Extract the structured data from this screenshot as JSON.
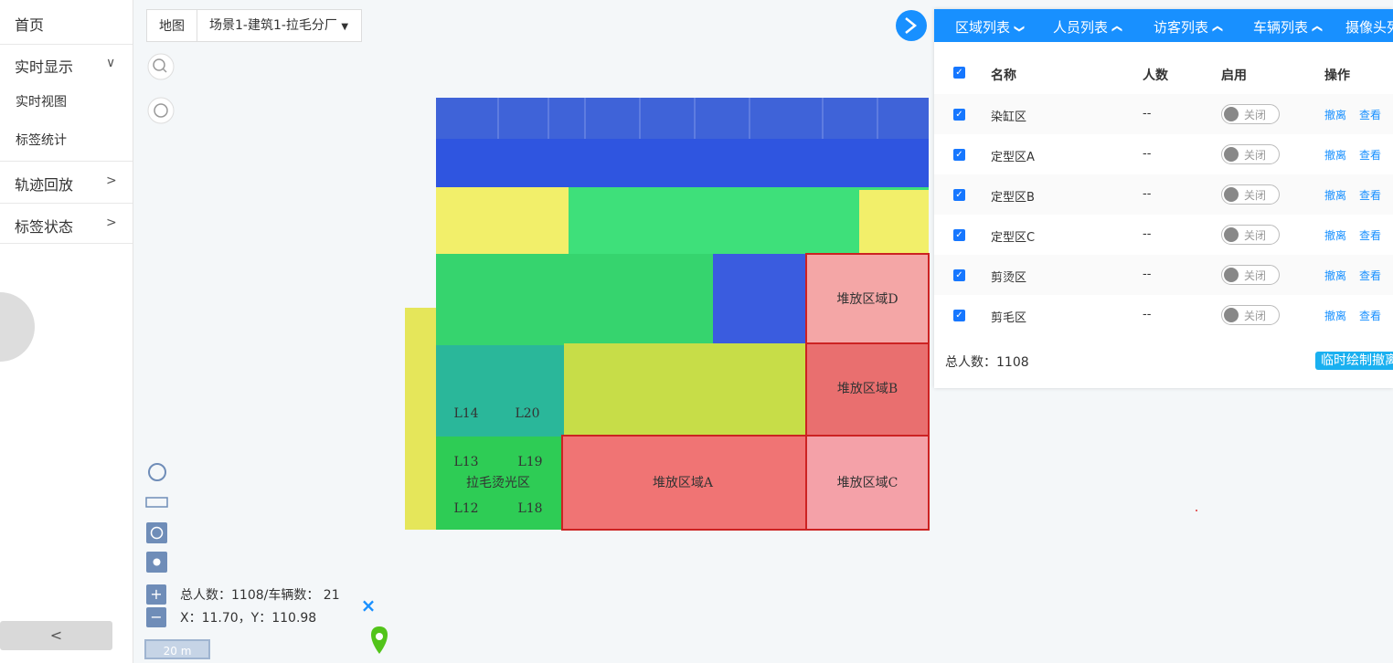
{
  "sidebar": {
    "items": [
      {
        "label": "首页"
      },
      {
        "label": "实时显示",
        "children": [
          "实时视图",
          "标签统计"
        ]
      },
      {
        "label": "轨迹回放"
      },
      {
        "label": "标签状态"
      }
    ]
  },
  "toolbar": {
    "map_button": "地图",
    "scene": "场景1-建筑1-拉毛分厂"
  },
  "map": {
    "zones": [
      "堆放区域D",
      "堆放区域B",
      "堆放区域A",
      "堆放区域C",
      "拉毛烫光区",
      "L12",
      "L13",
      "L14",
      "L18",
      "L19",
      "L20"
    ],
    "stats": "总人数：1108/车辆数： 21",
    "coords": "X：11.70，Y：110.98",
    "scale": "20 m"
  },
  "panel": {
    "tabs": [
      "区域列表",
      "人员列表",
      "访客列表",
      "车辆列表",
      "摄像头列表"
    ],
    "columns": [
      "名称",
      "人数",
      "启用",
      "操作"
    ],
    "rows": [
      {
        "name": "染缸区",
        "count": "--",
        "switch": "关闭",
        "actions": [
          "撤离",
          "查看"
        ]
      },
      {
        "name": "定型区A",
        "count": "--",
        "switch": "关闭",
        "actions": [
          "撤离",
          "查看"
        ]
      },
      {
        "name": "定型区B",
        "count": "--",
        "switch": "关闭",
        "actions": [
          "撤离",
          "查看"
        ]
      },
      {
        "name": "定型区C",
        "count": "--",
        "switch": "关闭",
        "actions": [
          "撤离",
          "查看"
        ]
      },
      {
        "name": "剪烫区",
        "count": "--",
        "switch": "关闭",
        "actions": [
          "撤离",
          "查看"
        ]
      },
      {
        "name": "剪毛区",
        "count": "--",
        "switch": "关闭",
        "actions": [
          "撤离",
          "查看"
        ]
      }
    ],
    "total": "总人数：1108",
    "button": "临时绘制撤离"
  }
}
